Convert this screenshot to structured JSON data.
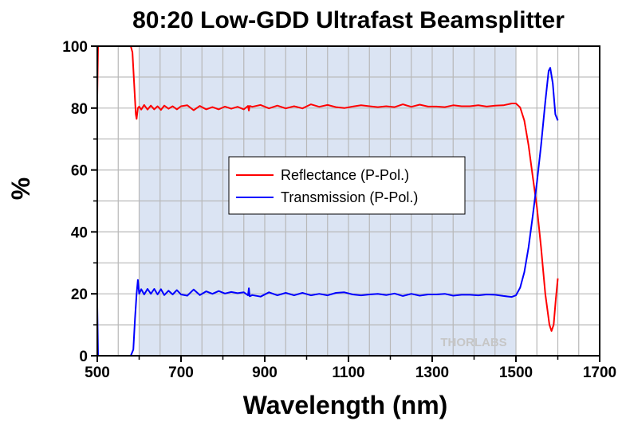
{
  "chart_data": {
    "type": "line",
    "title": "80:20 Low-GDD Ultrafast Beamsplitter",
    "xlabel": "Wavelength (nm)",
    "ylabel": "%",
    "xlim": [
      500,
      1700
    ],
    "ylim": [
      0,
      100
    ],
    "xticks": [
      500,
      700,
      900,
      1100,
      1300,
      1500,
      1700
    ],
    "yticks": [
      0,
      20,
      40,
      60,
      80,
      100
    ],
    "shaded_band": [
      600,
      1500
    ],
    "grid": true,
    "legend_position": "center-left",
    "watermark": "THORLABS",
    "series": [
      {
        "name": "Reflectance (P-Pol.)",
        "color": "#ff0000",
        "points": [
          [
            500,
            84
          ],
          [
            502,
            100
          ],
          [
            580,
            100
          ],
          [
            584,
            98
          ],
          [
            588,
            88
          ],
          [
            592,
            78
          ],
          [
            594,
            76.5
          ],
          [
            597,
            80
          ],
          [
            600,
            80.5
          ],
          [
            605,
            79.5
          ],
          [
            612,
            81
          ],
          [
            620,
            79.5
          ],
          [
            628,
            80.8
          ],
          [
            636,
            79.6
          ],
          [
            644,
            80.6
          ],
          [
            652,
            79.4
          ],
          [
            660,
            80.8
          ],
          [
            670,
            79.8
          ],
          [
            680,
            80.6
          ],
          [
            690,
            79.6
          ],
          [
            700,
            80.6
          ],
          [
            715,
            80.9
          ],
          [
            730,
            79.3
          ],
          [
            745,
            80.7
          ],
          [
            760,
            79.6
          ],
          [
            775,
            80.3
          ],
          [
            790,
            79.6
          ],
          [
            805,
            80.5
          ],
          [
            820,
            79.8
          ],
          [
            835,
            80.4
          ],
          [
            850,
            79.6
          ],
          [
            860,
            80.7
          ],
          [
            862,
            79.2
          ],
          [
            864,
            80.7
          ],
          [
            870,
            80.4
          ],
          [
            890,
            81
          ],
          [
            910,
            79.9
          ],
          [
            930,
            80.8
          ],
          [
            950,
            79.9
          ],
          [
            970,
            80.6
          ],
          [
            990,
            79.9
          ],
          [
            1010,
            81.2
          ],
          [
            1030,
            80.4
          ],
          [
            1050,
            81
          ],
          [
            1070,
            80.3
          ],
          [
            1090,
            80
          ],
          [
            1110,
            80.5
          ],
          [
            1130,
            80.9
          ],
          [
            1150,
            80.6
          ],
          [
            1170,
            80.3
          ],
          [
            1190,
            80.6
          ],
          [
            1210,
            80.3
          ],
          [
            1230,
            81.2
          ],
          [
            1250,
            80.4
          ],
          [
            1270,
            81.1
          ],
          [
            1290,
            80.5
          ],
          [
            1310,
            80.5
          ],
          [
            1330,
            80.3
          ],
          [
            1350,
            80.9
          ],
          [
            1370,
            80.6
          ],
          [
            1390,
            80.6
          ],
          [
            1410,
            80.9
          ],
          [
            1430,
            80.5
          ],
          [
            1450,
            80.8
          ],
          [
            1470,
            80.9
          ],
          [
            1490,
            81.5
          ],
          [
            1500,
            81.5
          ],
          [
            1510,
            80.2
          ],
          [
            1520,
            76
          ],
          [
            1530,
            68
          ],
          [
            1540,
            58
          ],
          [
            1550,
            48
          ],
          [
            1560,
            35
          ],
          [
            1570,
            20
          ],
          [
            1580,
            10
          ],
          [
            1585,
            8
          ],
          [
            1590,
            10
          ],
          [
            1595,
            18
          ],
          [
            1600,
            25
          ]
        ]
      },
      {
        "name": "Transmission (P-Pol.)",
        "color": "#0000ff",
        "points": [
          [
            500,
            16
          ],
          [
            502,
            0
          ],
          [
            580,
            0
          ],
          [
            586,
            2
          ],
          [
            590,
            12
          ],
          [
            594,
            20
          ],
          [
            597,
            24.5
          ],
          [
            600,
            20
          ],
          [
            605,
            21.5
          ],
          [
            612,
            19.8
          ],
          [
            620,
            21.6
          ],
          [
            628,
            20
          ],
          [
            636,
            21.6
          ],
          [
            644,
            19.8
          ],
          [
            652,
            21.5
          ],
          [
            660,
            19.6
          ],
          [
            670,
            21
          ],
          [
            680,
            19.8
          ],
          [
            690,
            21.2
          ],
          [
            700,
            19.8
          ],
          [
            715,
            19.4
          ],
          [
            730,
            21.4
          ],
          [
            745,
            19.6
          ],
          [
            760,
            20.8
          ],
          [
            775,
            20
          ],
          [
            790,
            20.9
          ],
          [
            805,
            20.1
          ],
          [
            820,
            20.6
          ],
          [
            835,
            20.2
          ],
          [
            850,
            20.5
          ],
          [
            860,
            19.5
          ],
          [
            862,
            21.8
          ],
          [
            864,
            19.2
          ],
          [
            870,
            19.6
          ],
          [
            890,
            19.1
          ],
          [
            910,
            20.5
          ],
          [
            930,
            19.5
          ],
          [
            950,
            20.3
          ],
          [
            970,
            19.5
          ],
          [
            990,
            20.3
          ],
          [
            1010,
            19.5
          ],
          [
            1030,
            20
          ],
          [
            1050,
            19.5
          ],
          [
            1070,
            20.3
          ],
          [
            1090,
            20.5
          ],
          [
            1110,
            19.8
          ],
          [
            1130,
            19.5
          ],
          [
            1150,
            19.8
          ],
          [
            1170,
            20
          ],
          [
            1190,
            19.6
          ],
          [
            1210,
            20.1
          ],
          [
            1230,
            19.3
          ],
          [
            1250,
            20
          ],
          [
            1270,
            19.4
          ],
          [
            1290,
            19.8
          ],
          [
            1310,
            19.8
          ],
          [
            1330,
            20
          ],
          [
            1350,
            19.4
          ],
          [
            1370,
            19.7
          ],
          [
            1390,
            19.7
          ],
          [
            1410,
            19.5
          ],
          [
            1430,
            19.8
          ],
          [
            1450,
            19.7
          ],
          [
            1470,
            19.3
          ],
          [
            1490,
            19
          ],
          [
            1500,
            19.5
          ],
          [
            1510,
            22
          ],
          [
            1520,
            27
          ],
          [
            1530,
            35
          ],
          [
            1540,
            45
          ],
          [
            1550,
            56
          ],
          [
            1560,
            68
          ],
          [
            1570,
            82
          ],
          [
            1578,
            92
          ],
          [
            1582,
            93
          ],
          [
            1588,
            88
          ],
          [
            1594,
            78
          ],
          [
            1600,
            76
          ]
        ]
      }
    ]
  }
}
